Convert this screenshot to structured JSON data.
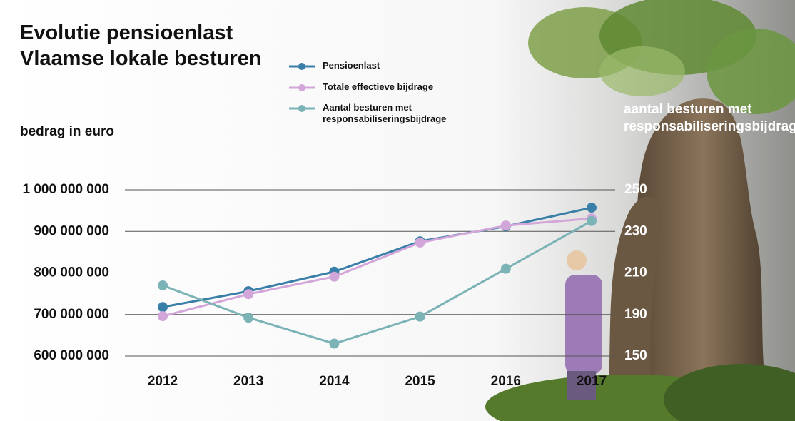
{
  "chart_data": {
    "type": "line",
    "title": [
      "Evolutie pensioenlast",
      "Vlaamse lokale besturen"
    ],
    "ylabel": "bedrag in euro",
    "y2label": "aantal besturen met responsabiliseringsbijdrage",
    "categories": [
      "2012",
      "2013",
      "2014",
      "2015",
      "2016",
      "2017"
    ],
    "series": [
      {
        "name": "Pensioenlast",
        "color": "#3a7fa8",
        "values": [
          718000000,
          756000000,
          803000000,
          876000000,
          912000000,
          957000000
        ]
      },
      {
        "name": "Totale effectieve bijdrage",
        "color": "#d3a6d9",
        "values": [
          696000000,
          749000000,
          791000000,
          873000000,
          914000000,
          931000000
        ]
      },
      {
        "name": "Aantal besturen met responsabiliseringsbijdrage",
        "color": "#7bb3b7",
        "axis": "y2",
        "values": [
          204,
          187,
          162,
          188,
          212,
          235
        ]
      }
    ],
    "ylim": [
      600000000,
      1000000000
    ],
    "yticks": [
      {
        "value": 600000000,
        "label": "600 000 000"
      },
      {
        "value": 700000000,
        "label": "700 000 000"
      },
      {
        "value": 800000000,
        "label": "800 000 000"
      },
      {
        "value": 900000000,
        "label": "900 000 000"
      },
      {
        "value": 1000000000,
        "label": "1 000 000 000"
      }
    ],
    "y2lim": [
      150,
      250
    ],
    "y2ticks": [
      150,
      190,
      210,
      230,
      250
    ],
    "grid": true
  }
}
